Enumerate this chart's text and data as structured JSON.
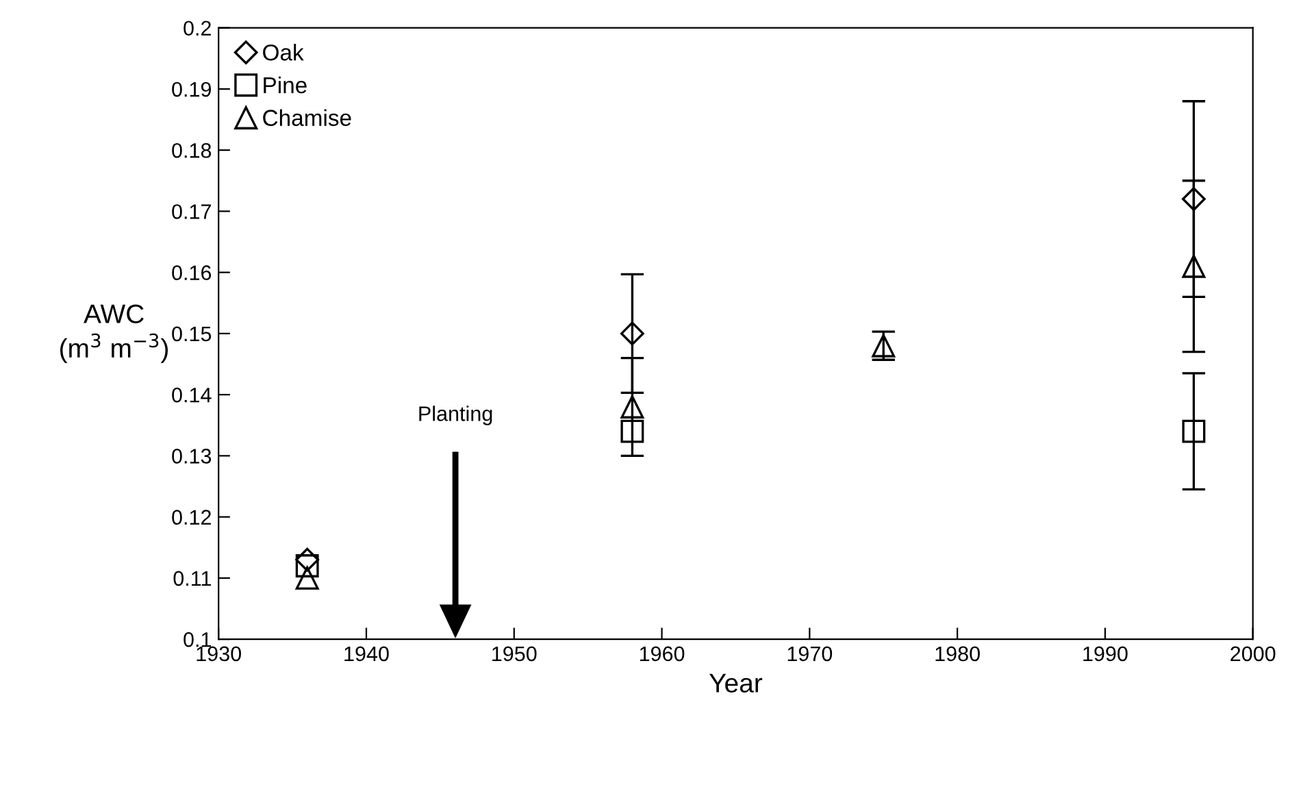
{
  "chart_data": {
    "type": "scatter",
    "xlabel": "Year",
    "ylabel": "AWC\n(m$^{3}$ m$^{−3}$)",
    "series": [
      {
        "name": "Oak",
        "color": "#000000",
        "marker": "diamond",
        "x": [
          1936,
          1958,
          1996
        ],
        "values": [
          0.113,
          0.15,
          0.172
        ],
        "errors": [
          null,
          0.0097,
          0.016
        ]
      },
      {
        "name": "Pine",
        "color": "#000000",
        "marker": "square",
        "x": [
          1936,
          1958,
          1996
        ],
        "values": [
          0.112,
          0.134,
          0.134
        ],
        "errors": [
          null,
          null,
          0.0095
        ]
      },
      {
        "name": "Chamise",
        "color": "#000000",
        "marker": "triangle",
        "x": [
          1936,
          1958,
          1975,
          1996
        ],
        "values": [
          0.11,
          0.138,
          0.148,
          0.161
        ],
        "errors": [
          null,
          0.008,
          0.0023,
          0.014
        ]
      }
    ],
    "annotations": [
      "Planting"
    ],
    "xlim": [
      1930,
      2000
    ],
    "xticks": [
      1930,
      1940,
      1950,
      1960,
      1970,
      1980,
      1990,
      2000
    ],
    "ylim": [
      0.1,
      0.2
    ],
    "yticks": [
      0.1,
      0.11,
      0.12,
      0.13,
      0.14,
      0.15,
      0.16,
      0.17,
      0.18,
      0.19,
      0.2
    ],
    "legend": "top left",
    "grid": false
  }
}
